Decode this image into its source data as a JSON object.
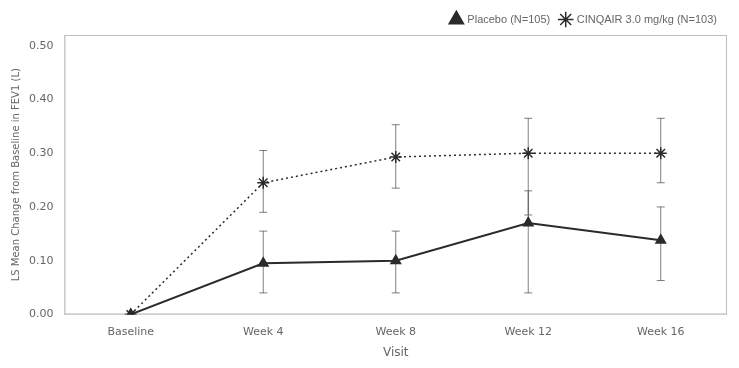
{
  "chart_data": {
    "type": "line",
    "x_label": "Visit",
    "y_label": "LS Mean Change from Baseline in FEV1 (L)",
    "categories": [
      "Baseline",
      "Week 4",
      "Week 8",
      "Week 12",
      "Week 16"
    ],
    "series": [
      {
        "name": "Placebo (N=105)",
        "color": "#2b2b2b",
        "marker": "triangle",
        "line_style": "solid",
        "values": [
          0.0,
          0.095,
          0.1,
          0.17,
          0.138
        ],
        "error_low": [
          0.0,
          0.055,
          0.06,
          0.13,
          0.075
        ],
        "error_high": [
          0.0,
          0.06,
          0.055,
          0.06,
          0.062
        ]
      },
      {
        "name": "CINQAIR 3.0 mg/kg (N=103)",
        "color": "#2b2b2b",
        "marker": "star",
        "line_style": "dotted",
        "values": [
          0.0,
          0.245,
          0.293,
          0.3,
          0.3
        ],
        "error_low": [
          0.0,
          0.055,
          0.058,
          0.115,
          0.055
        ],
        "error_high": [
          0.0,
          0.06,
          0.06,
          0.065,
          0.065
        ]
      }
    ],
    "ylim": [
      0.0,
      0.52
    ],
    "yticks": [
      {
        "value": 0.0,
        "label": "0.00"
      },
      {
        "value": 0.1,
        "label": "0.10"
      },
      {
        "value": 0.2,
        "label": "0.20"
      },
      {
        "value": 0.3,
        "label": "0.30"
      },
      {
        "value": 0.4,
        "label": "0.40"
      },
      {
        "value": 0.5,
        "label": "0.50"
      }
    ],
    "grid": false,
    "legend": "upper right"
  }
}
